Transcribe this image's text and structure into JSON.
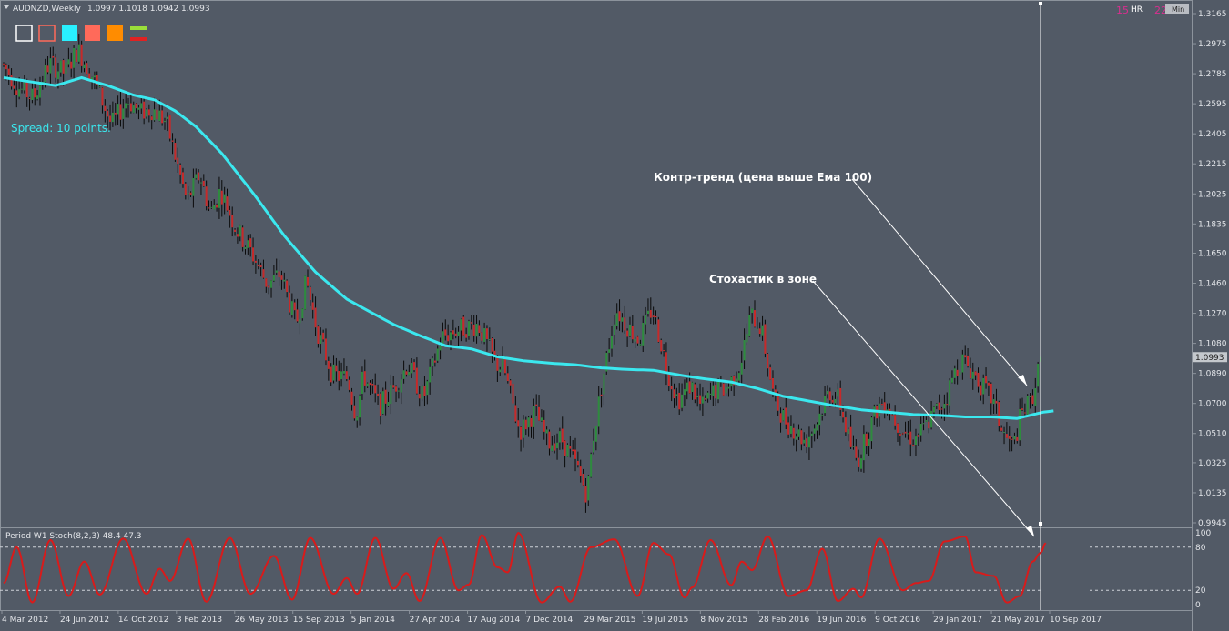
{
  "header": {
    "symbol_title": "AUDNZD,Weekly",
    "ohlc": "1.0997 1.1018 1.0942 1.0993",
    "badge_left_num": "15",
    "badge_left_txt": "HR",
    "badge_right_num": "22",
    "badge_right_txt": "Min"
  },
  "spread_label": "Spread: 10 points.",
  "toolbar_colors": [
    "#ffffff",
    "#ff6a5a",
    "#29f0ff",
    "#ff6a5a",
    "#ff8c00"
  ],
  "colors": {
    "background": "#525a66",
    "bull": "#2e8b3e",
    "bear": "#c62a2a",
    "ema": "#3be8ef",
    "stoch": "#d81b1b",
    "wick": "#0a0a0a",
    "grid_text": "#e4e6ea"
  },
  "annotations": {
    "counter_trend": "Контр-тренд (цена выше Ема 100)",
    "stoch_zone": "Стохастик в зоне"
  },
  "indicator_title": "Period W1 Stoch(8,2,3) 48.4 47.3",
  "chart_data": [
    {
      "type": "candlestick",
      "title": "AUDNZD,Weekly",
      "x_tick_labels": [
        "4 Mar 2012",
        "24 Jun 2012",
        "14 Oct 2012",
        "3 Feb 2013",
        "26 May 2013",
        "15 Sep 2013",
        "5 Jan 2014",
        "27 Apr 2014",
        "17 Aug 2014",
        "7 Dec 2014",
        "29 Mar 2015",
        "19 Jul 2015",
        "8 Nov 2015",
        "28 Feb 2016",
        "19 Jun 2016",
        "9 Oct 2016",
        "29 Jan 2017",
        "21 May 2017",
        "10 Sep 2017"
      ],
      "y_ticks": [
        1.3165,
        1.2975,
        1.2785,
        1.2595,
        1.2405,
        1.2215,
        1.2025,
        1.1835,
        1.165,
        1.146,
        1.127,
        1.108,
        1.089,
        1.07,
        1.051,
        1.0325,
        1.0135,
        0.9945
      ],
      "ylim": [
        0.9945,
        1.3165
      ],
      "current_price": 1.0993,
      "current_price_label": "1.0993",
      "ema_period": 100,
      "price_path": [
        [
          0,
          1.285
        ],
        [
          6,
          1.27
        ],
        [
          12,
          1.263
        ],
        [
          18,
          1.285
        ],
        [
          24,
          1.279
        ],
        [
          29,
          1.294
        ],
        [
          35,
          1.276
        ],
        [
          42,
          1.246
        ],
        [
          48,
          1.262
        ],
        [
          53,
          1.254
        ],
        [
          58,
          1.256
        ],
        [
          63,
          1.248
        ],
        [
          71,
          1.198
        ],
        [
          76,
          1.215
        ],
        [
          80,
          1.19
        ],
        [
          84,
          1.205
        ],
        [
          90,
          1.18
        ],
        [
          96,
          1.165
        ],
        [
          102,
          1.145
        ],
        [
          107,
          1.152
        ],
        [
          113,
          1.12
        ],
        [
          117,
          1.147
        ],
        [
          121,
          1.117
        ],
        [
          127,
          1.088
        ],
        [
          133,
          1.086
        ],
        [
          136,
          1.062
        ],
        [
          139,
          1.088
        ],
        [
          145,
          1.068
        ],
        [
          150,
          1.078
        ],
        [
          156,
          1.095
        ],
        [
          162,
          1.073
        ],
        [
          169,
          1.112
        ],
        [
          176,
          1.117
        ],
        [
          183,
          1.12
        ],
        [
          190,
          1.095
        ],
        [
          193,
          1.092
        ],
        [
          199,
          1.052
        ],
        [
          205,
          1.065
        ],
        [
          210,
          1.045
        ],
        [
          215,
          1.048
        ],
        [
          221,
          1.03
        ],
        [
          225,
          1.012
        ],
        [
          227,
          1.045
        ],
        [
          231,
          1.085
        ],
        [
          236,
          1.13
        ],
        [
          240,
          1.12
        ],
        [
          245,
          1.11
        ],
        [
          250,
          1.13
        ],
        [
          254,
          1.105
        ],
        [
          256,
          1.09
        ],
        [
          260,
          1.072
        ],
        [
          265,
          1.082
        ],
        [
          269,
          1.067
        ],
        [
          274,
          1.078
        ],
        [
          279,
          1.08
        ],
        [
          284,
          1.095
        ],
        [
          288,
          1.126
        ],
        [
          292,
          1.118
        ],
        [
          297,
          1.072
        ],
        [
          301,
          1.06
        ],
        [
          305,
          1.053
        ],
        [
          309,
          1.046
        ],
        [
          313,
          1.057
        ],
        [
          318,
          1.078
        ],
        [
          322,
          1.072
        ],
        [
          326,
          1.045
        ],
        [
          329,
          1.033
        ],
        [
          333,
          1.052
        ],
        [
          337,
          1.068
        ],
        [
          340,
          1.072
        ],
        [
          343,
          1.061
        ],
        [
          347,
          1.052
        ],
        [
          351,
          1.047
        ],
        [
          355,
          1.055
        ],
        [
          359,
          1.065
        ],
        [
          363,
          1.073
        ],
        [
          366,
          1.088
        ],
        [
          369,
          1.098
        ],
        [
          373,
          1.091
        ],
        [
          376,
          1.083
        ],
        [
          381,
          1.072
        ],
        [
          385,
          1.051
        ],
        [
          389,
          1.042
        ],
        [
          392,
          1.063
        ],
        [
          396,
          1.072
        ],
        [
          399,
          1.093
        ]
      ],
      "ema_path": [
        [
          0,
          1.276
        ],
        [
          20,
          1.271
        ],
        [
          30,
          1.276
        ],
        [
          40,
          1.271
        ],
        [
          50,
          1.265
        ],
        [
          58,
          1.262
        ],
        [
          66,
          1.255
        ],
        [
          74,
          1.245
        ],
        [
          84,
          1.228
        ],
        [
          96,
          1.203
        ],
        [
          108,
          1.176
        ],
        [
          120,
          1.153
        ],
        [
          132,
          1.136
        ],
        [
          142,
          1.127
        ],
        [
          150,
          1.12
        ],
        [
          160,
          1.113
        ],
        [
          170,
          1.1065
        ],
        [
          180,
          1.1045
        ],
        [
          190,
          1.0995
        ],
        [
          200,
          1.097
        ],
        [
          210,
          1.0955
        ],
        [
          220,
          1.0945
        ],
        [
          230,
          1.0925
        ],
        [
          240,
          1.0915
        ],
        [
          250,
          1.091
        ],
        [
          260,
          1.088
        ],
        [
          270,
          1.0855
        ],
        [
          280,
          1.0835
        ],
        [
          290,
          1.0795
        ],
        [
          300,
          1.0745
        ],
        [
          310,
          1.0715
        ],
        [
          320,
          1.0685
        ],
        [
          330,
          1.066
        ],
        [
          340,
          1.0645
        ],
        [
          350,
          1.063
        ],
        [
          360,
          1.0625
        ],
        [
          370,
          1.0615
        ],
        [
          380,
          1.0615
        ],
        [
          390,
          1.0605
        ],
        [
          400,
          1.0645
        ],
        [
          405,
          1.0655
        ]
      ]
    },
    {
      "type": "line",
      "title": "Period W1 Stoch(8,2,3) 48.4 47.3",
      "ylim": [
        0,
        100
      ],
      "levels": [
        20,
        80
      ],
      "y_tick_labels": [
        "100",
        "80",
        "20",
        "0"
      ],
      "series": [
        {
          "name": "",
          "points": [
            [
              0,
              30
            ],
            [
              5,
              80
            ],
            [
              11,
              3
            ],
            [
              18,
              90
            ],
            [
              25,
              12
            ],
            [
              31,
              60
            ],
            [
              37,
              14
            ],
            [
              46,
              92
            ],
            [
              55,
              15
            ],
            [
              60,
              50
            ],
            [
              64,
              33
            ],
            [
              71,
              92
            ],
            [
              78,
              4
            ],
            [
              87,
              93
            ],
            [
              95,
              15
            ],
            [
              104,
              68
            ],
            [
              111,
              7
            ],
            [
              118,
              93
            ],
            [
              127,
              15
            ],
            [
              132,
              37
            ],
            [
              136,
              15
            ],
            [
              143,
              93
            ],
            [
              150,
              22
            ],
            [
              155,
              44
            ],
            [
              160,
              5
            ],
            [
              168,
              93
            ],
            [
              175,
              20
            ],
            [
              179,
              28
            ],
            [
              184,
              97
            ],
            [
              190,
              52
            ],
            [
              194,
              45
            ],
            [
              198,
              100
            ],
            [
              207,
              3
            ],
            [
              214,
              25
            ],
            [
              218,
              4
            ],
            [
              226,
              80
            ],
            [
              235,
              91
            ],
            [
              244,
              12
            ],
            [
              250,
              86
            ],
            [
              256,
              70
            ],
            [
              262,
              10
            ],
            [
              265,
              24
            ],
            [
              272,
              90
            ],
            [
              280,
              27
            ],
            [
              284,
              60
            ],
            [
              288,
              48
            ],
            [
              294,
              95
            ],
            [
              302,
              12
            ],
            [
              309,
              20
            ],
            [
              315,
              78
            ],
            [
              321,
              5
            ],
            [
              327,
              22
            ],
            [
              330,
              10
            ],
            [
              337,
              92
            ],
            [
              346,
              20
            ],
            [
              351,
              30
            ],
            [
              356,
              33
            ],
            [
              362,
              88
            ],
            [
              370,
              95
            ],
            [
              374,
              45
            ],
            [
              381,
              40
            ],
            [
              386,
              3
            ],
            [
              391,
              12
            ],
            [
              396,
              60
            ],
            [
              399,
              72
            ],
            [
              401,
              86
            ]
          ]
        }
      ]
    }
  ]
}
